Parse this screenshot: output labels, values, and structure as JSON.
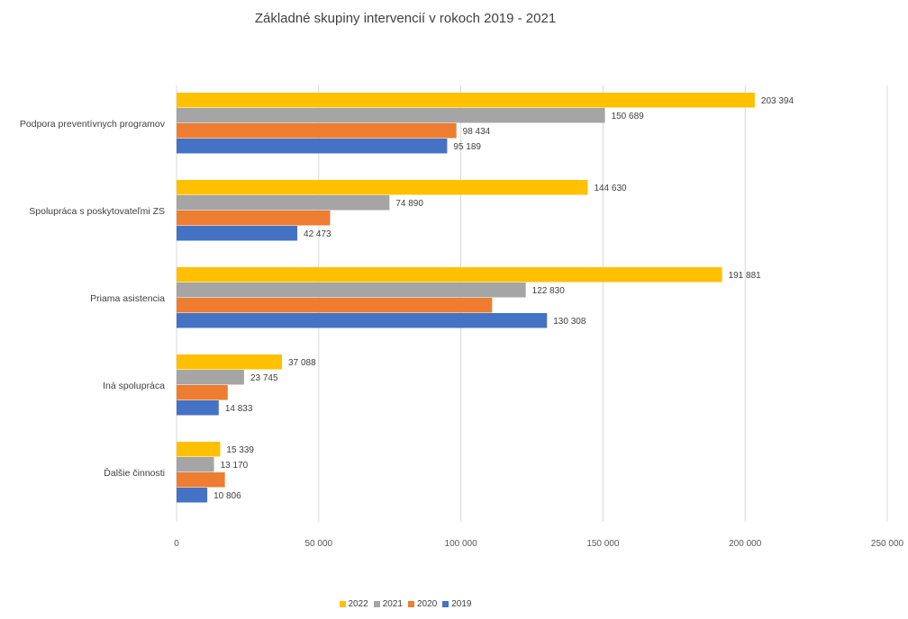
{
  "chart_data": {
    "type": "bar",
    "orientation": "horizontal",
    "title": "Základné skupiny intervencií v rokoch 2019 - 2021",
    "categories": [
      "Podpora preventívnych programov",
      "Spolupráca s poskytovateľmi ZS",
      "Priama asistencia",
      "Iná spolupráca",
      "Ďalšie činnosti"
    ],
    "series": [
      {
        "name": "2022",
        "color": "#FFC000",
        "values": [
          203394,
          144630,
          191881,
          37088,
          15339
        ],
        "labels": [
          "203 394",
          "144 630",
          "191 881",
          "37 088",
          "15 339"
        ]
      },
      {
        "name": "2021",
        "color": "#A5A5A5",
        "values": [
          150689,
          74890,
          122830,
          23745,
          13170
        ],
        "labels": [
          "150 689",
          "74 890",
          "122 830",
          "23 745",
          "13 170"
        ]
      },
      {
        "name": "2020",
        "color": "#ED7D31",
        "values": [
          98434,
          54000,
          111000,
          18000,
          17000
        ],
        "labels": [
          "98 434",
          "",
          "",
          "",
          ""
        ]
      },
      {
        "name": "2019",
        "color": "#4472C4",
        "values": [
          95189,
          42473,
          130308,
          14833,
          10806
        ],
        "labels": [
          "95 189",
          "42 473",
          "130 308",
          "14 833",
          "10 806"
        ]
      }
    ],
    "xlim": [
      0,
      250000
    ],
    "ticks": [
      0,
      50000,
      100000,
      150000,
      200000,
      250000
    ],
    "tick_labels": [
      "0",
      "50 000",
      "100 000",
      "150 000",
      "200 000",
      "250 000"
    ],
    "grid": true,
    "legend_position": "bottom"
  }
}
